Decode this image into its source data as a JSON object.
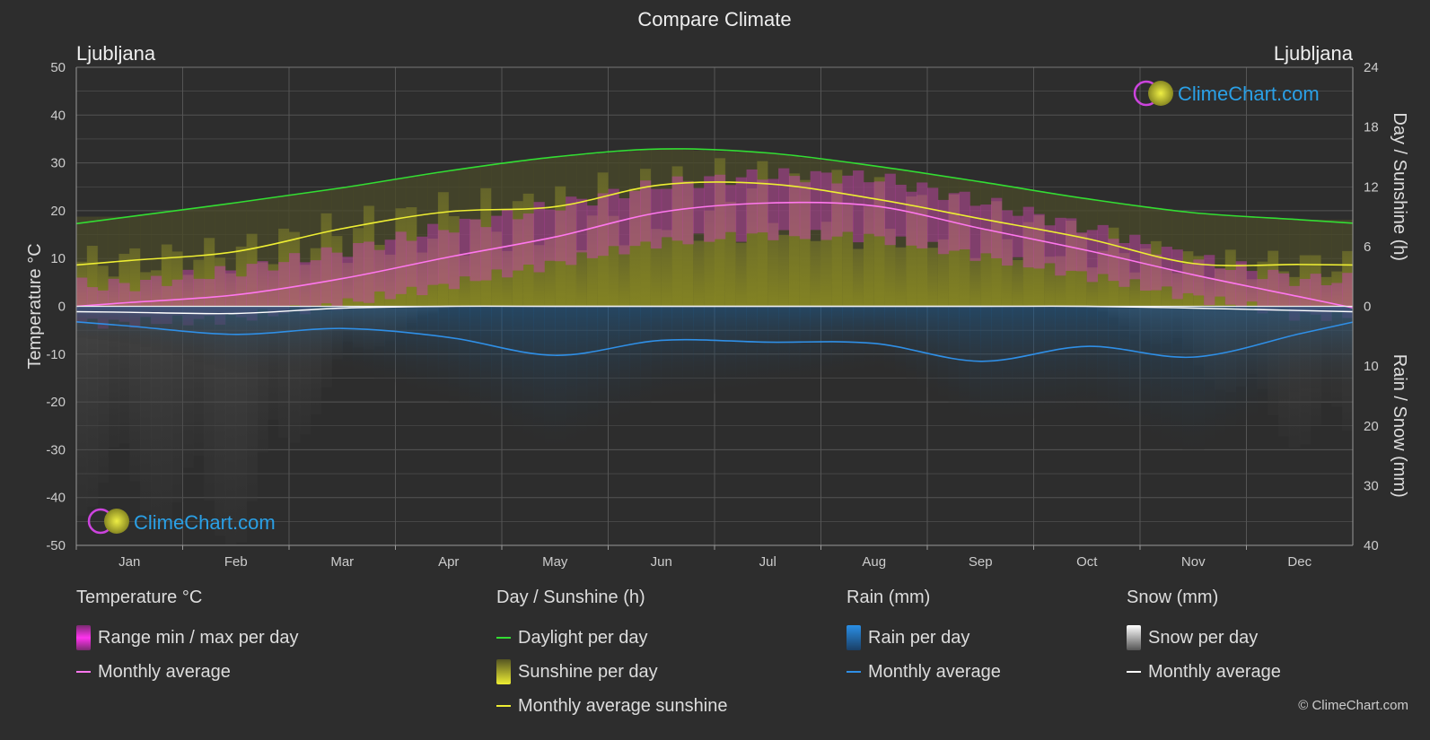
{
  "title": "Compare Climate",
  "location_left": "Ljubljana",
  "location_right": "Ljubljana",
  "watermark": "ClimeChart.com",
  "copyright": "© ClimeChart.com",
  "colors": {
    "background": "#2d2d2d",
    "temp_range": "#d63cc8",
    "temp_avg": "#ff77ee",
    "daylight": "#33dd33",
    "sunshine_fill": "#c8c832",
    "sunshine_avg": "#eeee33",
    "rain": "#2a7fd4",
    "rain_avg": "#2f8fe6",
    "snow": "#bbbbbb",
    "snow_avg": "#ffffff"
  },
  "chart_data": {
    "type": "line",
    "title": "Compare Climate",
    "months": [
      "Jan",
      "Feb",
      "Mar",
      "Apr",
      "May",
      "Jun",
      "Jul",
      "Aug",
      "Sep",
      "Oct",
      "Nov",
      "Dec"
    ],
    "left_axis": {
      "label": "Temperature °C",
      "min": -50,
      "max": 50,
      "ticks": [
        50,
        40,
        30,
        20,
        10,
        0,
        -10,
        -20,
        -30,
        -40,
        -50
      ]
    },
    "right_axis_top": {
      "label": "Day / Sunshine (h)",
      "min": 0,
      "max": 24,
      "ticks": [
        24,
        18,
        12,
        6,
        0
      ]
    },
    "right_axis_bottom": {
      "label": "Rain / Snow (mm)",
      "min": 0,
      "max": 40,
      "ticks": [
        0,
        10,
        20,
        30,
        40
      ]
    },
    "grid": true,
    "series": [
      {
        "name": "Daylight per day",
        "unit": "h",
        "values": [
          9.0,
          10.4,
          11.9,
          13.6,
          15.0,
          15.8,
          15.4,
          14.1,
          12.5,
          10.8,
          9.4,
          8.7
        ]
      },
      {
        "name": "Monthly average sunshine",
        "unit": "h",
        "values": [
          4.6,
          5.5,
          7.8,
          9.5,
          10.0,
          12.2,
          12.3,
          10.8,
          8.8,
          6.8,
          4.3,
          4.2
        ]
      },
      {
        "name": "Monthly average",
        "group": "Temperature °C",
        "unit": "°C",
        "values": [
          0.8,
          2.4,
          5.8,
          10.3,
          14.5,
          19.7,
          21.6,
          21.0,
          16.3,
          11.7,
          6.6,
          2.0
        ]
      },
      {
        "name": "Range min / max per day",
        "unit": "°C",
        "min": [
          -3.5,
          -2.5,
          0.5,
          4.5,
          9.0,
          13.5,
          15.0,
          14.5,
          10.5,
          6.5,
          2.0,
          -2.0
        ],
        "max": [
          4.5,
          7.5,
          11.5,
          16.5,
          21.0,
          25.5,
          27.5,
          27.0,
          22.0,
          16.5,
          10.0,
          5.5
        ]
      },
      {
        "name": "Rain monthly average",
        "unit": "mm",
        "values": [
          3.3,
          4.7,
          3.7,
          5.2,
          8.2,
          5.7,
          6.0,
          6.2,
          9.2,
          6.7,
          8.5,
          4.6
        ]
      },
      {
        "name": "Snow monthly average",
        "unit": "mm",
        "values": [
          1.0,
          1.2,
          0.3,
          0.0,
          0.0,
          0.0,
          0.0,
          0.0,
          0.0,
          0.0,
          0.3,
          0.7
        ]
      }
    ]
  },
  "legend": {
    "temperature": {
      "header": "Temperature °C",
      "items": [
        "Range min / max per day",
        "Monthly average"
      ]
    },
    "sunshine": {
      "header": "Day / Sunshine (h)",
      "items": [
        "Daylight per day",
        "Sunshine per day",
        "Monthly average sunshine"
      ]
    },
    "rain": {
      "header": "Rain (mm)",
      "items": [
        "Rain per day",
        "Monthly average"
      ]
    },
    "snow": {
      "header": "Snow (mm)",
      "items": [
        "Snow per day",
        "Monthly average"
      ]
    }
  }
}
